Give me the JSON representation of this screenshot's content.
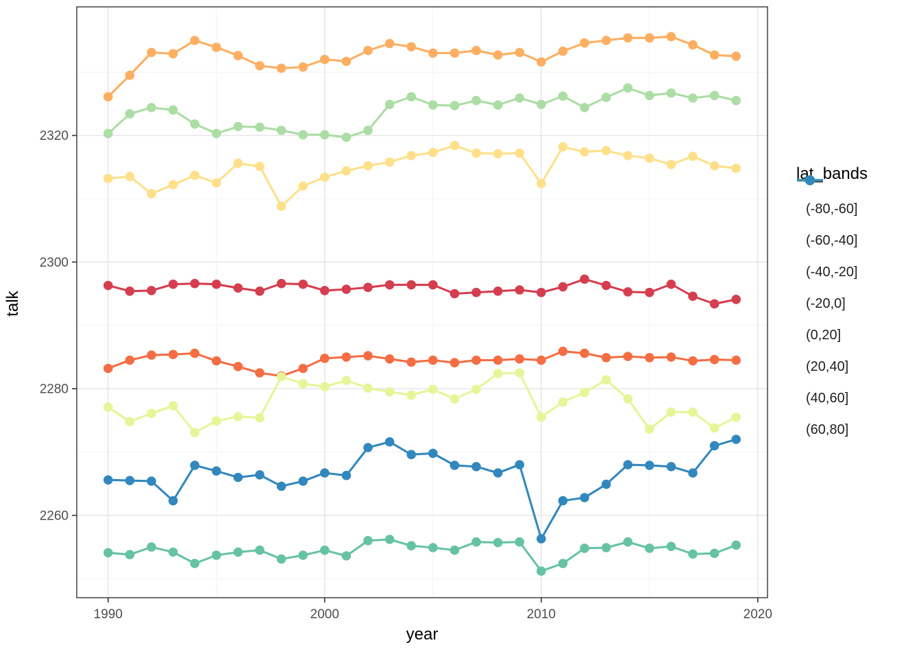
{
  "figure": {
    "background": "#ffffff",
    "panel_background": "#ffffff"
  },
  "style": {
    "major_grid_color": "#e4e4e4",
    "minor_grid_color": "#f1f1f1",
    "panel_border_color": "#333333",
    "tick_mark_color": "#333333",
    "tick_label_color": "#4d4d4d",
    "tick_label_size": 19,
    "point_radius": 6.8,
    "line_width": 3.1
  },
  "chart_data": {
    "type": "line",
    "title": "",
    "xlabel": "year",
    "ylabel": "talk",
    "legend_title": "lat_bands",
    "legend_position": "right",
    "grid": true,
    "xlim": [
      1988.55,
      2020.45
    ],
    "ylim": [
      2247.0,
      2340.3
    ],
    "x_ticks": [
      1990,
      2000,
      2010,
      2020
    ],
    "x_minor_ticks": [
      1995,
      2005,
      2015
    ],
    "y_ticks": [
      2260,
      2280,
      2300,
      2320
    ],
    "y_minor_ticks": [
      2250,
      2270,
      2290,
      2310,
      2330
    ],
    "x": [
      1990,
      1991,
      1992,
      1993,
      1994,
      1995,
      1996,
      1997,
      1998,
      1999,
      2000,
      2001,
      2002,
      2003,
      2004,
      2005,
      2006,
      2007,
      2008,
      2009,
      2010,
      2011,
      2012,
      2013,
      2014,
      2015,
      2016,
      2017,
      2018,
      2019
    ],
    "series": [
      {
        "name": "(-80,-60]",
        "color": "#d53e4f",
        "values": [
          2296.3,
          2295.4,
          2295.5,
          2296.5,
          2296.6,
          2296.5,
          2295.9,
          2295.4,
          2296.6,
          2296.5,
          2295.5,
          2295.7,
          2296.0,
          2296.4,
          2296.4,
          2296.4,
          2295.0,
          2295.2,
          2295.4,
          2295.6,
          2295.2,
          2296.1,
          2297.3,
          2296.3,
          2295.3,
          2295.2,
          2296.5,
          2294.6,
          2293.4,
          2294.1
        ]
      },
      {
        "name": "(-60,-40]",
        "color": "#f46d43",
        "values": [
          2283.2,
          2284.5,
          2285.3,
          2285.4,
          2285.6,
          2284.4,
          2283.5,
          2282.5,
          2282.0,
          2283.2,
          2284.8,
          2285.0,
          2285.2,
          2284.7,
          2284.2,
          2284.5,
          2284.1,
          2284.5,
          2284.5,
          2284.7,
          2284.5,
          2285.9,
          2285.6,
          2284.9,
          2285.1,
          2284.9,
          2285.0,
          2284.4,
          2284.6,
          2284.5
        ]
      },
      {
        "name": "(-40,-20]",
        "color": "#fdae61",
        "values": [
          2326.1,
          2329.5,
          2333.1,
          2332.9,
          2335.0,
          2333.9,
          2332.6,
          2331.0,
          2330.6,
          2330.8,
          2332.0,
          2331.7,
          2333.4,
          2334.5,
          2334.0,
          2333.0,
          2333.0,
          2333.4,
          2332.7,
          2333.1,
          2331.6,
          2333.3,
          2334.6,
          2335.0,
          2335.4,
          2335.4,
          2335.6,
          2334.3,
          2332.7,
          2332.5
        ]
      },
      {
        "name": "(-20,0]",
        "color": "#fee08b",
        "values": [
          2313.2,
          2313.5,
          2310.8,
          2312.2,
          2313.7,
          2312.5,
          2315.6,
          2315.1,
          2308.8,
          2312.0,
          2313.4,
          2314.4,
          2315.2,
          2315.8,
          2316.8,
          2317.3,
          2318.4,
          2317.2,
          2317.1,
          2317.2,
          2312.4,
          2318.2,
          2317.4,
          2317.6,
          2316.8,
          2316.4,
          2315.4,
          2316.7,
          2315.2,
          2314.8
        ]
      },
      {
        "name": "(0,20]",
        "color": "#e6f598",
        "values": [
          2277.1,
          2274.8,
          2276.1,
          2277.3,
          2273.1,
          2274.9,
          2275.6,
          2275.4,
          2281.9,
          2280.8,
          2280.3,
          2281.3,
          2280.1,
          2279.5,
          2279.0,
          2279.9,
          2278.4,
          2279.9,
          2282.4,
          2282.5,
          2275.5,
          2277.9,
          2279.4,
          2281.4,
          2278.4,
          2273.6,
          2276.3,
          2276.3,
          2273.8,
          2275.5
        ]
      },
      {
        "name": "(20,40]",
        "color": "#abdda4",
        "values": [
          2320.3,
          2323.4,
          2324.4,
          2324.0,
          2321.8,
          2320.3,
          2321.4,
          2321.3,
          2320.8,
          2320.1,
          2320.1,
          2319.7,
          2320.8,
          2324.9,
          2326.1,
          2324.8,
          2324.7,
          2325.5,
          2324.8,
          2325.9,
          2324.9,
          2326.2,
          2324.4,
          2326.0,
          2327.5,
          2326.3,
          2326.7,
          2325.9,
          2326.3,
          2325.5
        ]
      },
      {
        "name": "(40,60]",
        "color": "#66c2a5",
        "values": [
          2254.1,
          2253.8,
          2255.0,
          2254.2,
          2252.4,
          2253.7,
          2254.2,
          2254.5,
          2253.1,
          2253.7,
          2254.5,
          2253.6,
          2256.0,
          2256.2,
          2255.2,
          2254.9,
          2254.5,
          2255.8,
          2255.7,
          2255.8,
          2251.2,
          2252.4,
          2254.8,
          2254.9,
          2255.8,
          2254.8,
          2255.1,
          2253.9,
          2254.0,
          2255.3
        ]
      },
      {
        "name": "(60,80]",
        "color": "#3288bd",
        "values": [
          2265.6,
          2265.5,
          2265.4,
          2262.3,
          2267.9,
          2267.0,
          2266.0,
          2266.4,
          2264.6,
          2265.4,
          2266.7,
          2266.3,
          2270.7,
          2271.6,
          2269.6,
          2269.8,
          2267.9,
          2267.7,
          2266.7,
          2268.0,
          2256.3,
          2262.3,
          2262.8,
          2264.9,
          2268.0,
          2267.9,
          2267.7,
          2266.7,
          2271.0,
          2272.0
        ]
      }
    ]
  }
}
